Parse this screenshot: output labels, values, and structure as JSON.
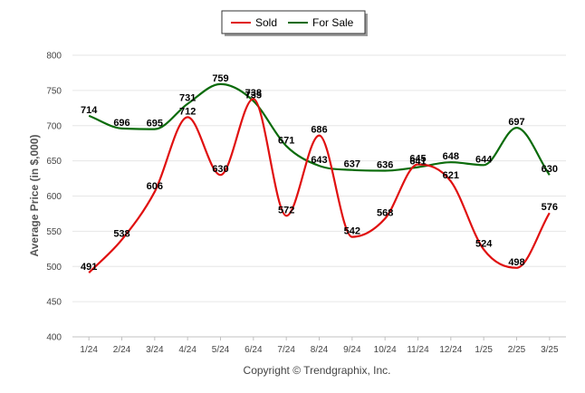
{
  "chart_data": {
    "type": "line",
    "title": "",
    "xlabel": "",
    "ylabel": "Average Price (in $,000)",
    "categories": [
      "1/24",
      "2/24",
      "3/24",
      "4/24",
      "5/24",
      "6/24",
      "7/24",
      "8/24",
      "9/24",
      "10/24",
      "11/24",
      "12/24",
      "1/25",
      "2/25",
      "3/25"
    ],
    "series": [
      {
        "name": "Sold",
        "color": "#e01010",
        "values": [
          491,
          538,
          606,
          712,
          630,
          738,
          572,
          686,
          542,
          568,
          645,
          621,
          524,
          498,
          576
        ]
      },
      {
        "name": "For Sale",
        "color": "#0a6b0a",
        "values": [
          714,
          696,
          695,
          731,
          759,
          735,
          671,
          643,
          637,
          636,
          641,
          648,
          644,
          697,
          630
        ]
      }
    ],
    "ylim": [
      400,
      800
    ],
    "yticks": [
      400,
      450,
      500,
      550,
      600,
      650,
      700,
      750,
      800
    ],
    "grid": true,
    "legend_position": "top-center",
    "footer": "Copyright © Trendgraphix, Inc."
  }
}
